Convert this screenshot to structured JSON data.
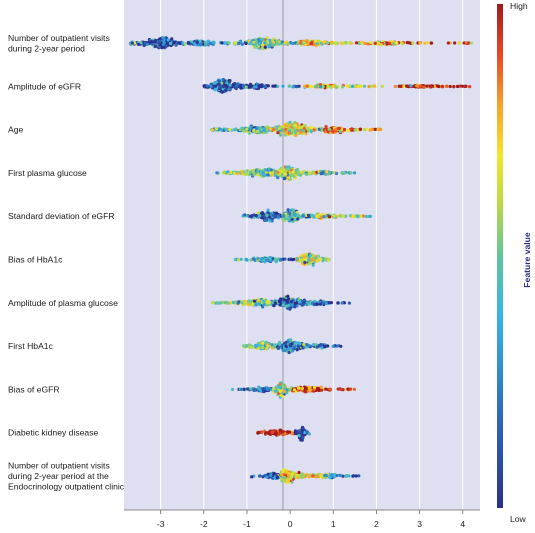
{
  "chart_data": {
    "type": "scatter",
    "subtype": "beeswarm",
    "xlim": [
      -3.85,
      4.4
    ],
    "x_ticks": [
      -3,
      -2,
      -1,
      0,
      1,
      2,
      3,
      4
    ],
    "grid": true,
    "features": [
      {
        "name": [
          "Number of outpatient visits",
          "during 2-year period"
        ],
        "segments": [
          {
            "from": -3.7,
            "to": -2.6,
            "peak": -2.95,
            "value": 0.05,
            "height": 8
          },
          {
            "from": -2.6,
            "to": -1.4,
            "peak": -2.1,
            "value": 0.12,
            "height": 4
          },
          {
            "from": -1.3,
            "to": 0.2,
            "peak": -0.6,
            "value": 0.38,
            "height": 7
          },
          {
            "from": 0.2,
            "to": 1.7,
            "peak": 0.5,
            "value": 0.6,
            "height": 4
          },
          {
            "from": 1.7,
            "to": 3.3,
            "peak": 2.2,
            "value": 0.8,
            "height": 2.5
          },
          {
            "from": 3.6,
            "to": 4.2,
            "peak": 4.1,
            "value": 0.95,
            "height": 1
          }
        ]
      },
      {
        "name": [
          "Amplitude of eGFR"
        ],
        "segments": [
          {
            "from": -2.0,
            "to": -1.1,
            "peak": -1.55,
            "value": 0.04,
            "height": 10
          },
          {
            "from": -1.1,
            "to": 0.3,
            "peak": -0.8,
            "value": 0.1,
            "height": 3
          },
          {
            "from": 0.3,
            "to": 2.0,
            "peak": 0.8,
            "value": 0.55,
            "height": 2.5
          },
          {
            "from": 2.0,
            "to": 4.25,
            "peak": 3.0,
            "value": 0.95,
            "height": 1.5
          }
        ]
      },
      {
        "name": [
          "Age"
        ],
        "segments": [
          {
            "from": -1.85,
            "to": -0.4,
            "peak": -0.8,
            "value": 0.35,
            "height": 5
          },
          {
            "from": -0.4,
            "to": 0.8,
            "peak": 0.05,
            "value": 0.6,
            "height": 9
          },
          {
            "from": 0.8,
            "to": 2.1,
            "peak": 1.0,
            "value": 0.82,
            "height": 4
          }
        ]
      },
      {
        "name": [
          "First plasma glucose"
        ],
        "segments": [
          {
            "from": -1.7,
            "to": -0.3,
            "peak": -0.6,
            "value": 0.4,
            "height": 6
          },
          {
            "from": -0.3,
            "to": 0.7,
            "peak": -0.05,
            "value": 0.5,
            "height": 9
          },
          {
            "from": 0.7,
            "to": 1.5,
            "peak": 0.8,
            "value": 0.25,
            "height": 3
          }
        ]
      },
      {
        "name": [
          "Standard deviation of eGFR"
        ],
        "segments": [
          {
            "from": -1.1,
            "to": -0.2,
            "peak": -0.5,
            "value": 0.1,
            "height": 7
          },
          {
            "from": -0.2,
            "to": 0.6,
            "peak": 0.0,
            "value": 0.3,
            "height": 9
          },
          {
            "from": 0.6,
            "to": 1.9,
            "peak": 0.7,
            "value": 0.55,
            "height": 3
          }
        ]
      },
      {
        "name": [
          "Bias of HbA1c"
        ],
        "segments": [
          {
            "from": -1.3,
            "to": 0.1,
            "peak": -0.5,
            "value": 0.2,
            "height": 3
          },
          {
            "from": 0.15,
            "to": 0.9,
            "peak": 0.4,
            "value": 0.5,
            "height": 9
          }
        ]
      },
      {
        "name": [
          "Amplitude of plasma glucose"
        ],
        "segments": [
          {
            "from": -1.8,
            "to": -0.4,
            "peak": -0.7,
            "value": 0.4,
            "height": 5
          },
          {
            "from": -0.4,
            "to": 0.6,
            "peak": -0.05,
            "value": 0.15,
            "height": 9
          },
          {
            "from": 0.6,
            "to": 1.4,
            "peak": 0.7,
            "value": 0.1,
            "height": 3
          }
        ]
      },
      {
        "name": [
          "First HbA1c"
        ],
        "segments": [
          {
            "from": -1.1,
            "to": -0.3,
            "peak": -0.6,
            "value": 0.42,
            "height": 6
          },
          {
            "from": -0.3,
            "to": 0.6,
            "peak": 0.0,
            "value": 0.2,
            "height": 9
          },
          {
            "from": 0.6,
            "to": 1.2,
            "peak": 0.7,
            "value": 0.12,
            "height": 3
          }
        ]
      },
      {
        "name": [
          "Bias of eGFR"
        ],
        "segments": [
          {
            "from": -1.35,
            "to": -0.4,
            "peak": -0.6,
            "value": 0.1,
            "height": 3
          },
          {
            "from": -0.4,
            "to": 0.05,
            "peak": -0.2,
            "value": 0.5,
            "height": 11
          },
          {
            "from": 0.05,
            "to": 1.5,
            "peak": 0.4,
            "value": 0.88,
            "height": 4
          }
        ]
      },
      {
        "name": [
          "Diabetic kidney disease"
        ],
        "segments": [
          {
            "from": -0.75,
            "to": 0.1,
            "peak": -0.3,
            "value": 0.96,
            "height": 5
          },
          {
            "from": 0.12,
            "to": 0.45,
            "peak": 0.28,
            "value": 0.04,
            "height": 10
          }
        ]
      },
      {
        "name": [
          "Number of outpatient visits",
          "during 2-year period at the",
          "Endocrinology outpatient clinic"
        ],
        "segments": [
          {
            "from": -0.9,
            "to": -0.2,
            "peak": -0.35,
            "value": 0.12,
            "height": 4
          },
          {
            "from": -0.2,
            "to": 0.8,
            "peak": -0.1,
            "value": 0.6,
            "height": 9
          },
          {
            "from": 0.8,
            "to": 1.6,
            "peak": 0.9,
            "value": 0.2,
            "height": 3
          }
        ]
      }
    ],
    "colorbar": {
      "high_label": "High",
      "low_label": "Low",
      "title": "Feature value",
      "colors": [
        "#2b2f8f",
        "#2e6fbf",
        "#37b5e6",
        "#62c49a",
        "#b7d94a",
        "#f4e42c",
        "#f6a22a",
        "#e8452a",
        "#a01c1c"
      ]
    }
  }
}
